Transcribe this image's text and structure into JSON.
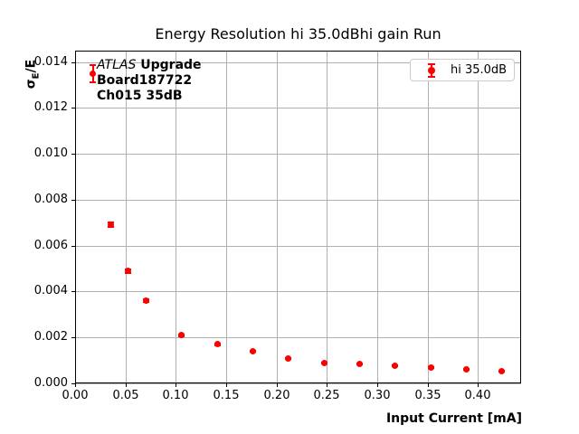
{
  "title": "Energy Resolution hi 35.0dBhi gain Run",
  "ylabel_parts": {
    "sigma": "σ",
    "sub": "E",
    "rest": "/E"
  },
  "annotation": {
    "atlas": "ATLAS",
    "upgrade": " Upgrade",
    "board": "Board187722",
    "channel": "Ch015 35dB"
  },
  "legend": {
    "label": "hi 35.0dB"
  },
  "colors": {
    "marker": "#ff0000",
    "grid": "#b0b0b0",
    "axis": "#000000",
    "legend_border": "#cccccc"
  },
  "chart_data": {
    "type": "scatter",
    "title": "Energy Resolution hi 35.0dBhi gain Run",
    "xlabel": "Input Current [mA]",
    "ylabel": "σ_E/E",
    "grid": true,
    "legend_position": "upper right",
    "xlim": [
      0,
      0.443
    ],
    "ylim": [
      0,
      0.0145
    ],
    "xticks": [
      0.0,
      0.05,
      0.1,
      0.15,
      0.2,
      0.25,
      0.3,
      0.35,
      0.4
    ],
    "xtick_labels": [
      "0.00",
      "0.05",
      "0.10",
      "0.15",
      "0.20",
      "0.25",
      "0.30",
      "0.35",
      "0.40"
    ],
    "yticks": [
      0.0,
      0.002,
      0.004,
      0.006,
      0.008,
      0.01,
      0.012,
      0.014
    ],
    "ytick_labels": [
      "0.000",
      "0.002",
      "0.004",
      "0.006",
      "0.008",
      "0.010",
      "0.012",
      "0.014"
    ],
    "series": [
      {
        "name": "hi 35.0dB",
        "color": "#ff0000",
        "x": [
          0.0177,
          0.0353,
          0.053,
          0.0707,
          0.106,
          0.1414,
          0.1767,
          0.212,
          0.2473,
          0.2827,
          0.318,
          0.3534,
          0.3887,
          0.424
        ],
        "y": [
          0.0135,
          0.0069,
          0.0049,
          0.0036,
          0.0021,
          0.0017,
          0.0014,
          0.0011,
          0.0009,
          0.00085,
          0.00075,
          0.0007,
          0.00063,
          0.00055
        ],
        "yerr": [
          0.00038,
          0.0001,
          8e-05,
          6e-05,
          4e-05,
          3e-05,
          3e-05,
          2e-05,
          2e-05,
          2e-05,
          2e-05,
          2e-05,
          2e-05,
          2e-05
        ]
      }
    ]
  }
}
